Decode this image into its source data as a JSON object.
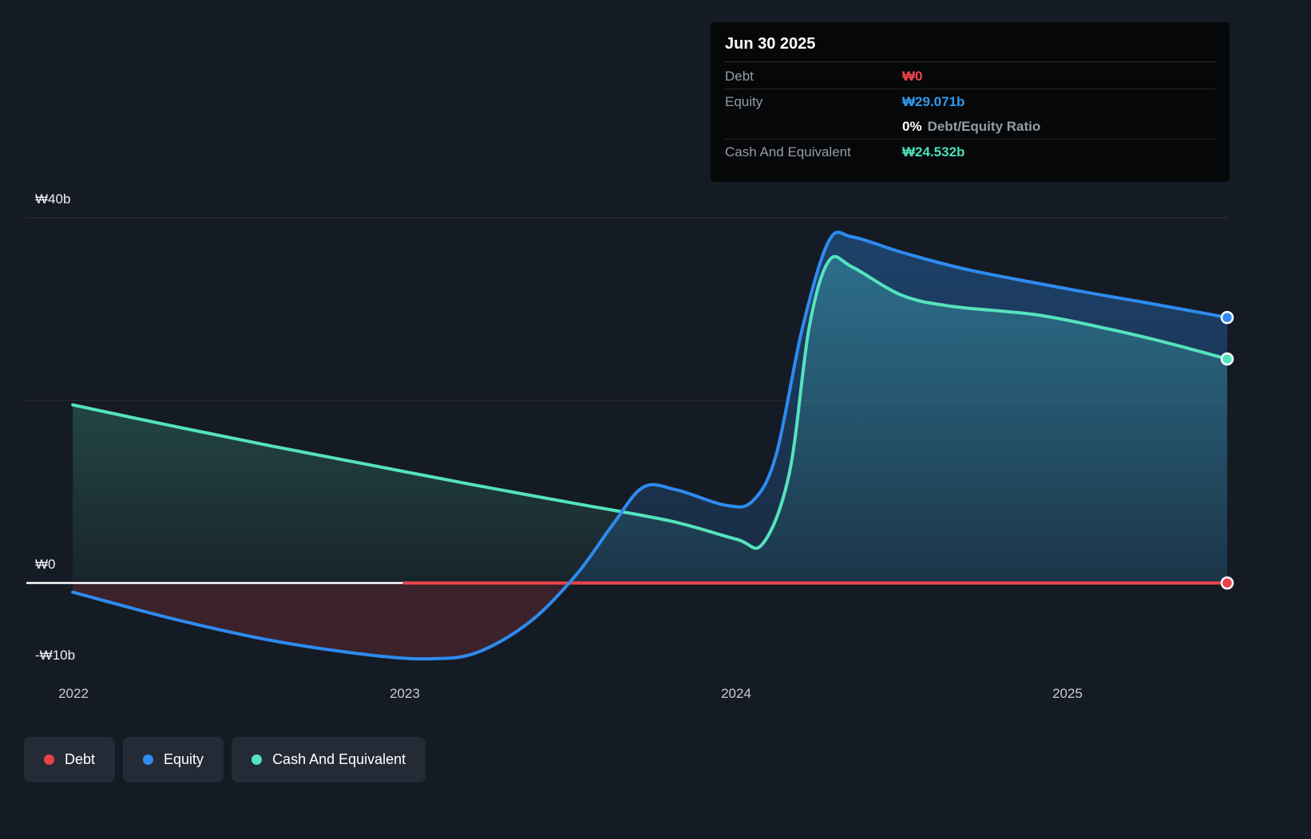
{
  "colors": {
    "background": "#151b24",
    "debt": "#e8434b",
    "equity": "#2e8bf0",
    "cash": "#55e3bd",
    "debt_value_text": "#f2444b",
    "equity_value_text": "#2e9bf0",
    "cash_value_text": "#4ae0b8"
  },
  "tooltip": {
    "date": "Jun 30 2025",
    "debt_label": "Debt",
    "debt_value": "₩0",
    "equity_label": "Equity",
    "equity_value": "₩29.071b",
    "ratio_value": "0%",
    "ratio_label": "Debt/Equity Ratio",
    "cash_label": "Cash And Equivalent",
    "cash_value": "₩24.532b"
  },
  "axis": {
    "y_top": "₩40b",
    "y_zero": "₩0",
    "y_bottom": "-₩10b",
    "x": [
      "2022",
      "2023",
      "2024",
      "2025"
    ]
  },
  "legend": {
    "items": [
      "Debt",
      "Equity",
      "Cash And Equivalent"
    ]
  },
  "chart_data": {
    "type": "area",
    "x_unit": "decimal_year",
    "xlim": [
      2021.86,
      2025.48
    ],
    "ylim": [
      -10,
      42
    ],
    "y_gridlines": [
      40,
      20,
      0
    ],
    "y_tick_labels": [
      {
        "value": 40,
        "label": "₩40b"
      },
      {
        "value": 0,
        "label": "₩0"
      },
      {
        "value": -10,
        "label": "-₩10b"
      }
    ],
    "x_tick_values": [
      2022,
      2023,
      2024,
      2025
    ],
    "unit": "billions KRW",
    "series": [
      {
        "name": "Debt",
        "color": "#e8434b",
        "points": [
          [
            2023.0,
            0
          ],
          [
            2025.48,
            0
          ]
        ]
      },
      {
        "name": "Equity",
        "color": "#2e8bf0",
        "points": [
          [
            2022.0,
            -1.0
          ],
          [
            2022.3,
            -3.9
          ],
          [
            2022.6,
            -6.3
          ],
          [
            2022.9,
            -7.9
          ],
          [
            2023.08,
            -8.3
          ],
          [
            2023.22,
            -7.6
          ],
          [
            2023.38,
            -4.2
          ],
          [
            2023.52,
            1.0
          ],
          [
            2023.63,
            6.5
          ],
          [
            2023.72,
            10.5
          ],
          [
            2023.82,
            10.2
          ],
          [
            2023.97,
            8.5
          ],
          [
            2024.05,
            9.0
          ],
          [
            2024.12,
            14.0
          ],
          [
            2024.2,
            28.0
          ],
          [
            2024.28,
            37.5
          ],
          [
            2024.35,
            37.9
          ],
          [
            2024.5,
            36.2
          ],
          [
            2024.7,
            34.3
          ],
          [
            2025.0,
            32.2
          ],
          [
            2025.25,
            30.6
          ],
          [
            2025.48,
            29.071
          ]
        ]
      },
      {
        "name": "Cash And Equivalent",
        "color": "#55e3bd",
        "points": [
          [
            2022.0,
            19.5
          ],
          [
            2022.3,
            17.2
          ],
          [
            2022.6,
            15.0
          ],
          [
            2022.9,
            12.9
          ],
          [
            2023.2,
            10.8
          ],
          [
            2023.5,
            8.8
          ],
          [
            2023.8,
            6.8
          ],
          [
            2024.0,
            4.8
          ],
          [
            2024.08,
            4.3
          ],
          [
            2024.16,
            12.0
          ],
          [
            2024.22,
            28.0
          ],
          [
            2024.28,
            35.3
          ],
          [
            2024.35,
            34.6
          ],
          [
            2024.5,
            31.5
          ],
          [
            2024.65,
            30.3
          ],
          [
            2024.9,
            29.4
          ],
          [
            2025.1,
            28.0
          ],
          [
            2025.3,
            26.3
          ],
          [
            2025.48,
            24.532
          ]
        ]
      }
    ]
  }
}
